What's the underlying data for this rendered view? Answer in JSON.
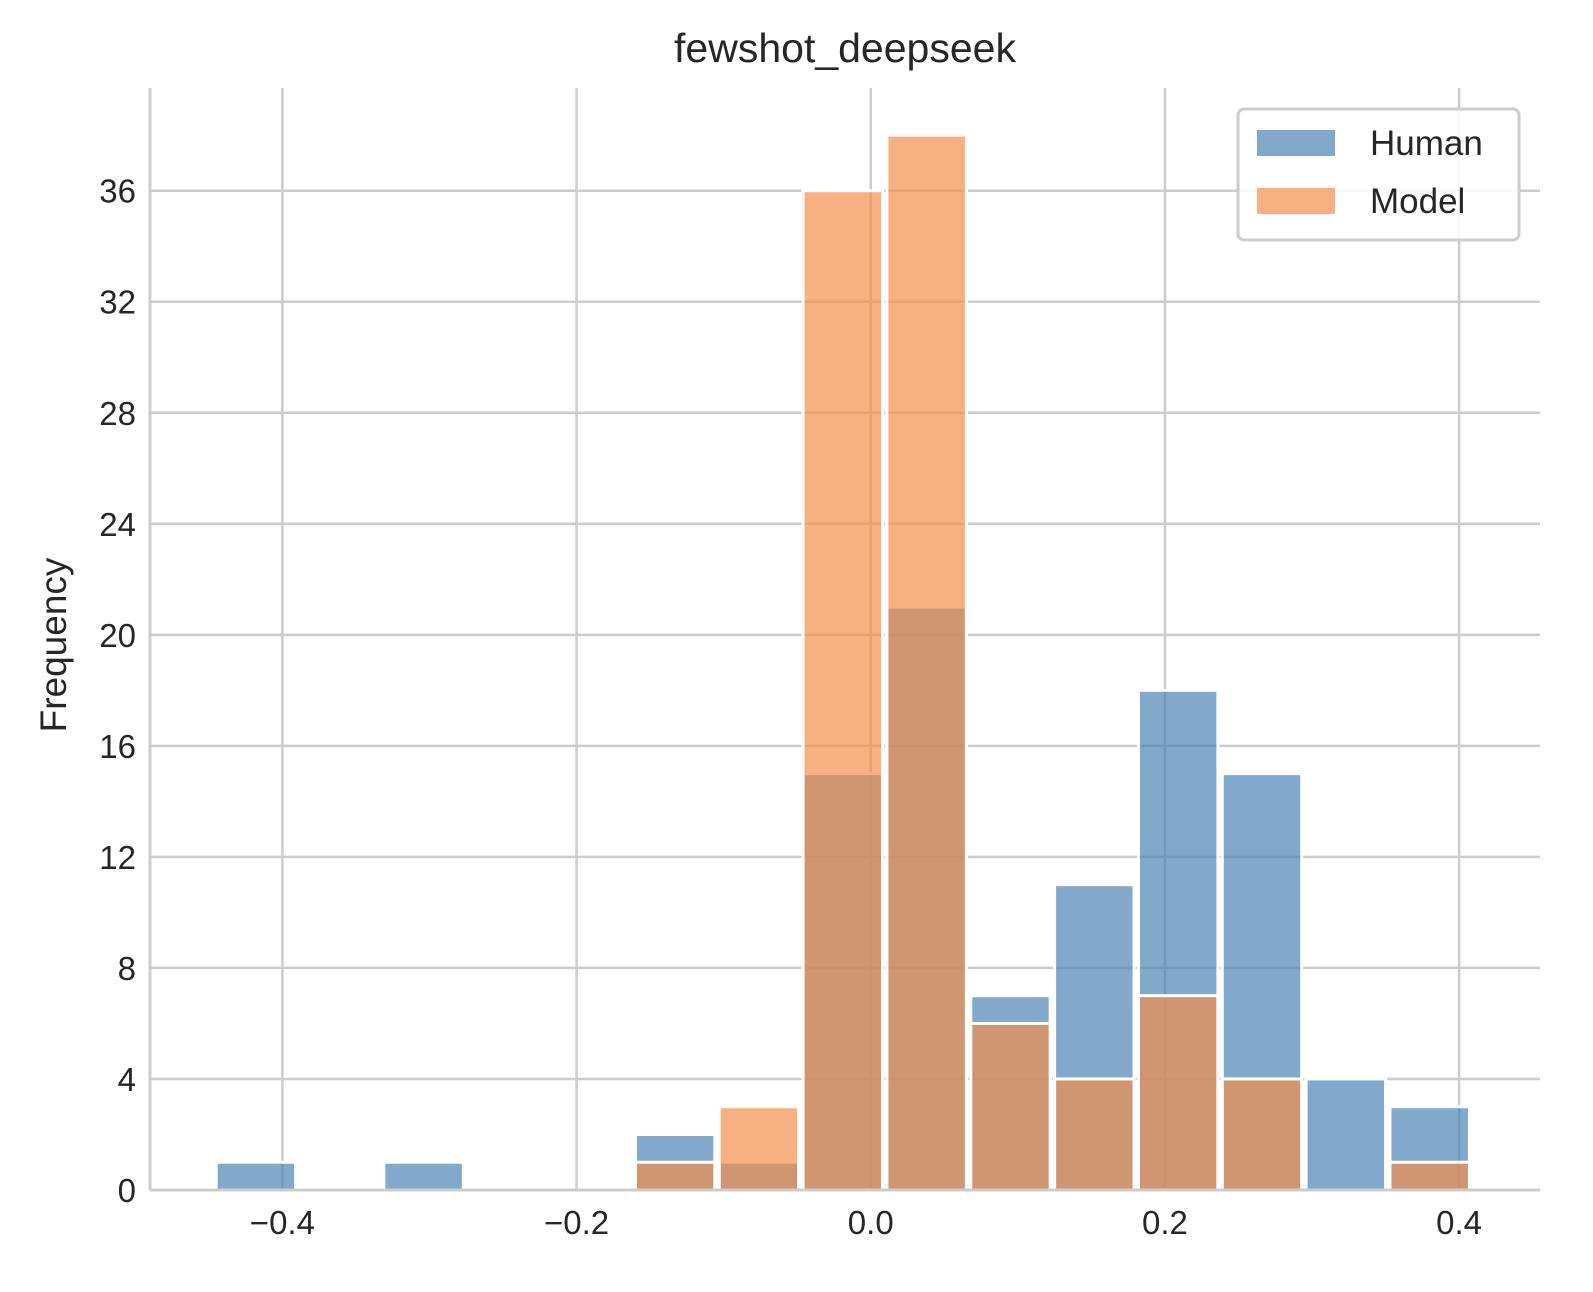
{
  "chart_data": {
    "type": "bar",
    "title": "fewshot_deepseek",
    "xlabel": "",
    "ylabel": "Frequency",
    "xlim": [
      -0.49,
      0.455
    ],
    "ylim": [
      0,
      39.7
    ],
    "xticks": [
      -0.4,
      -0.2,
      0.0,
      0.2,
      0.4
    ],
    "xtick_labels": [
      "−0.4",
      "−0.2",
      "0.0",
      "0.2",
      "0.4"
    ],
    "yticks": [
      0,
      4,
      8,
      12,
      16,
      20,
      24,
      28,
      32,
      36
    ],
    "grid": true,
    "legend_position": "top-right",
    "series": [
      {
        "name": "Human",
        "color": "#4c85b5",
        "bins": [
          {
            "x0": -0.445,
            "x1": -0.391,
            "value": 1
          },
          {
            "x0": -0.331,
            "x1": -0.277,
            "value": 1
          },
          {
            "x0": -0.16,
            "x1": -0.106,
            "value": 2
          },
          {
            "x0": -0.103,
            "x1": -0.049,
            "value": 1
          },
          {
            "x0": -0.046,
            "x1": 0.008,
            "value": 15
          },
          {
            "x0": 0.011,
            "x1": 0.065,
            "value": 21
          },
          {
            "x0": 0.068,
            "x1": 0.122,
            "value": 7
          },
          {
            "x0": 0.125,
            "x1": 0.179,
            "value": 11
          },
          {
            "x0": 0.182,
            "x1": 0.236,
            "value": 18
          },
          {
            "x0": 0.239,
            "x1": 0.293,
            "value": 15
          },
          {
            "x0": 0.296,
            "x1": 0.35,
            "value": 4
          },
          {
            "x0": 0.353,
            "x1": 0.407,
            "value": 3
          }
        ]
      },
      {
        "name": "Model",
        "color": "#f28e4c",
        "bins": [
          {
            "x0": -0.16,
            "x1": -0.106,
            "value": 1
          },
          {
            "x0": -0.103,
            "x1": -0.049,
            "value": 3
          },
          {
            "x0": -0.046,
            "x1": 0.008,
            "value": 36
          },
          {
            "x0": 0.011,
            "x1": 0.065,
            "value": 38
          },
          {
            "x0": 0.068,
            "x1": 0.122,
            "value": 6
          },
          {
            "x0": 0.125,
            "x1": 0.179,
            "value": 4
          },
          {
            "x0": 0.182,
            "x1": 0.236,
            "value": 7
          },
          {
            "x0": 0.239,
            "x1": 0.293,
            "value": 4
          },
          {
            "x0": 0.353,
            "x1": 0.407,
            "value": 1
          }
        ]
      }
    ]
  }
}
